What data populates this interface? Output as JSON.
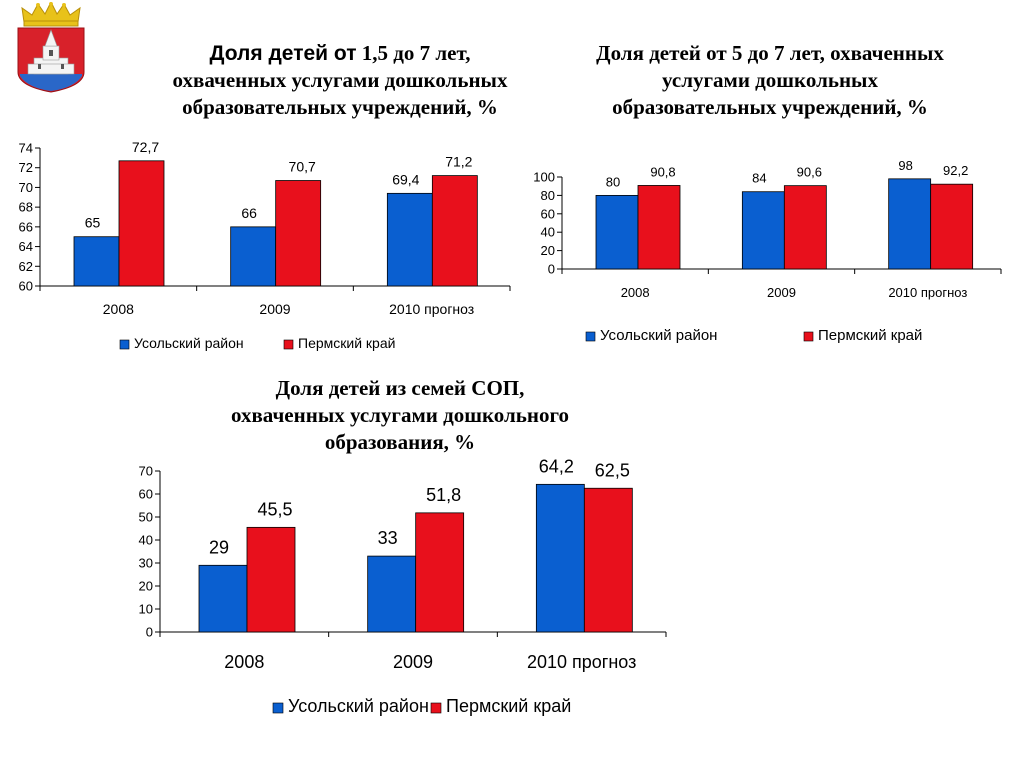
{
  "colors": {
    "series1": "#0a5fd0",
    "series2": "#e8101c"
  },
  "header": {
    "emblem_icon": "coat-of-arms-icon"
  },
  "chart_data": [
    {
      "type": "bar",
      "title_part1": "Доля детей от",
      "title_part2": "1,5 до 7 лет,",
      "title_line2": "охваченных услугами дошкольных",
      "title_line3": "образовательных учреждений, %",
      "categories": [
        "2008",
        "2009",
        "2010 прогноз"
      ],
      "series": [
        {
          "name": "Усольский район",
          "values": [
            65,
            66,
            69.4
          ],
          "labels": [
            "65",
            "66",
            "69,4"
          ]
        },
        {
          "name": "Пермский край",
          "values": [
            72.7,
            70.7,
            71.2
          ],
          "labels": [
            "72,7",
            "70,7",
            "71,2"
          ]
        }
      ],
      "ylim": [
        60,
        74
      ],
      "yticks": [
        60,
        62,
        64,
        66,
        68,
        70,
        72,
        74
      ],
      "legend": "bottom",
      "grid": false
    },
    {
      "type": "bar",
      "title_line1": "Доля детей от 5 до 7 лет, охваченных",
      "title_line2": "услугами дошкольных",
      "title_line3": "образовательных учреждений, %",
      "categories": [
        "2008",
        "2009",
        "2010 прогноз"
      ],
      "series": [
        {
          "name": "Усольский район",
          "values": [
            80,
            84,
            98
          ],
          "labels": [
            "80",
            "84",
            "98"
          ]
        },
        {
          "name": "Пермский край",
          "values": [
            90.8,
            90.6,
            92.2
          ],
          "labels": [
            "90,8",
            "90,6",
            "92,2"
          ]
        }
      ],
      "ylim": [
        0,
        100
      ],
      "yticks": [
        0,
        20,
        40,
        60,
        80,
        100
      ],
      "legend": "bottom",
      "grid": false
    },
    {
      "type": "bar",
      "title_line1": "Доля детей из семей СОП,",
      "title_line2": "охваченных услугами дошкольного",
      "title_line3": "образования, %",
      "categories": [
        "2008",
        "2009",
        "2010 прогноз"
      ],
      "series": [
        {
          "name": "Усольский район",
          "values": [
            29,
            33,
            64.2
          ],
          "labels": [
            "29",
            "33",
            "64,2"
          ]
        },
        {
          "name": "Пермский край",
          "values": [
            45.5,
            51.8,
            62.5
          ],
          "labels": [
            "45,5",
            "51,8",
            "62,5"
          ]
        }
      ],
      "ylim": [
        0,
        70
      ],
      "yticks": [
        0,
        10,
        20,
        30,
        40,
        50,
        60,
        70
      ],
      "legend": "bottom",
      "grid": false
    }
  ]
}
